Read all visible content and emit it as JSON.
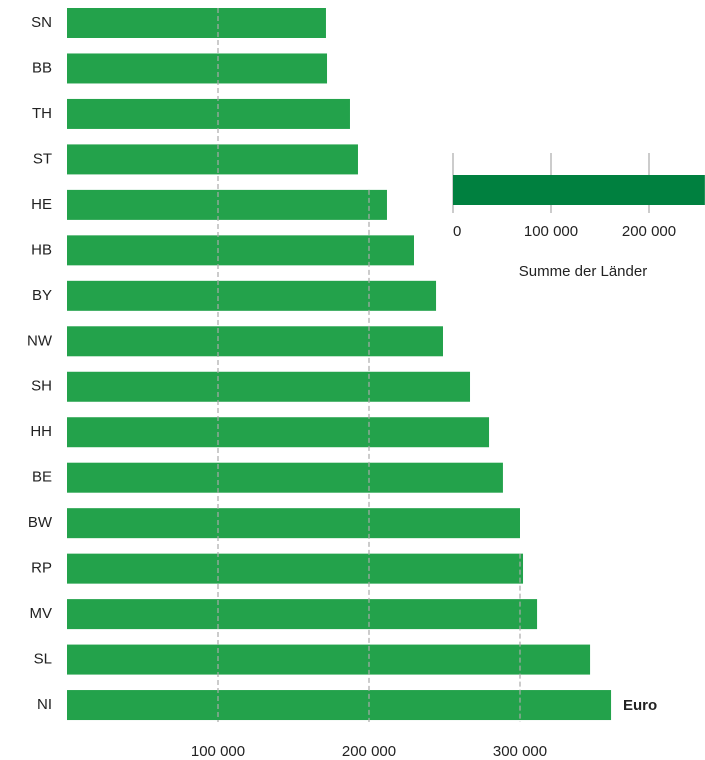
{
  "chart_data": [
    {
      "type": "bar",
      "orientation": "horizontal",
      "categories": [
        "SN",
        "BB",
        "TH",
        "ST",
        "HE",
        "HB",
        "BY",
        "NW",
        "SH",
        "HH",
        "BE",
        "BW",
        "RP",
        "MV",
        "SL",
        "NI"
      ],
      "values": [
        171500,
        172200,
        187400,
        192700,
        211900,
        229800,
        244400,
        249000,
        266900,
        279500,
        288700,
        300000,
        302000,
        311300,
        346400,
        360300
      ],
      "color": "#23a24b",
      "unit": "Euro",
      "xlim": [
        0,
        420000
      ],
      "xticks": [
        {
          "value": 100000,
          "label": "100 000"
        },
        {
          "value": 200000,
          "label": "200 000"
        },
        {
          "value": 300000,
          "label": "300 000"
        }
      ],
      "grid": true
    },
    {
      "type": "bar",
      "orientation": "horizontal",
      "values": [
        257000
      ],
      "color": "#00803f",
      "xlabel": "Summe der Länder",
      "xlim": [
        0,
        257000
      ],
      "xticks": [
        0,
        {
          "value": 100000,
          "label": "100 000"
        },
        {
          "value": 200000,
          "label": "200 000"
        }
      ]
    }
  ]
}
